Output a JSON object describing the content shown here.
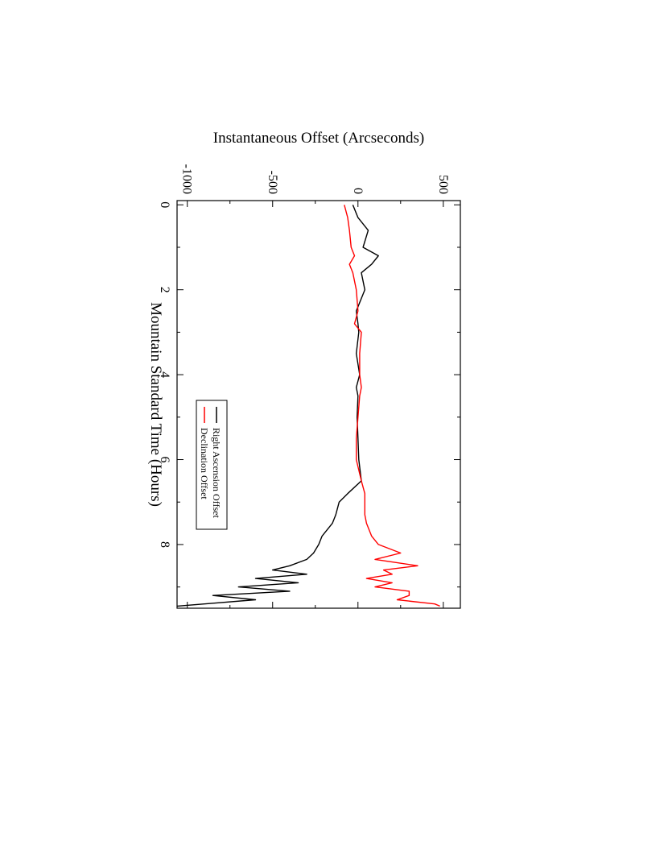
{
  "chart_data": {
    "type": "line",
    "title": "",
    "xlabel": "Mountain Standard Time (Hours)",
    "ylabel": "Instantaneous Offset (Arcseconds)",
    "xlim": [
      -0.1,
      9.5
    ],
    "ylim": [
      -1060,
      600
    ],
    "x_ticks": [
      0,
      2,
      4,
      6,
      8
    ],
    "x_tick_labels": [
      "0",
      "2",
      "4",
      "6",
      "8"
    ],
    "y_ticks": [
      500,
      0,
      -500,
      -1000
    ],
    "y_tick_labels": [
      "500",
      "0",
      "-500",
      "-1000"
    ],
    "grid": false,
    "orientation": "page rotated 90 degrees clockwise",
    "legend_position": "upper-left (in rotated view)",
    "series": [
      {
        "name": "Right Ascension Offset",
        "color": "#000000",
        "x": [
          0,
          0.3,
          0.6,
          1.0,
          1.2,
          1.4,
          1.6,
          2.0,
          2.5,
          2.8,
          3.0,
          3.5,
          4.0,
          4.3,
          4.5,
          5.0,
          5.5,
          6.0,
          6.5,
          6.8,
          7.0,
          7.3,
          7.5,
          7.8,
          8.0,
          8.2,
          8.35,
          8.5,
          8.6,
          8.7,
          8.8,
          8.9,
          9.0,
          9.1,
          9.2,
          9.3,
          9.4,
          9.45
        ],
        "values": [
          -30,
          0,
          60,
          30,
          120,
          80,
          20,
          40,
          -10,
          0,
          5,
          -10,
          10,
          -10,
          0,
          -5,
          0,
          5,
          20,
          -60,
          -110,
          -130,
          -150,
          -210,
          -230,
          -260,
          -300,
          -400,
          -500,
          -300,
          -600,
          -350,
          -700,
          -400,
          -850,
          -600,
          -900,
          -1060
        ]
      },
      {
        "name": "Declination Offset",
        "color": "#ff0000",
        "x": [
          0,
          0.3,
          0.6,
          1.0,
          1.2,
          1.4,
          1.6,
          2.0,
          2.5,
          2.8,
          3.0,
          3.5,
          4.0,
          4.3,
          4.5,
          5.0,
          5.5,
          6.0,
          6.5,
          6.8,
          7.0,
          7.3,
          7.5,
          7.8,
          8.0,
          8.2,
          8.35,
          8.5,
          8.6,
          8.7,
          8.8,
          8.9,
          9.0,
          9.1,
          9.2,
          9.3,
          9.4,
          9.45
        ],
        "values": [
          -80,
          -60,
          -50,
          -40,
          -20,
          -50,
          -30,
          -10,
          0,
          -20,
          20,
          10,
          10,
          20,
          10,
          0,
          -10,
          -10,
          20,
          40,
          40,
          40,
          50,
          80,
          120,
          250,
          100,
          350,
          150,
          200,
          50,
          200,
          100,
          300,
          300,
          230,
          450,
          480
        ]
      }
    ]
  }
}
